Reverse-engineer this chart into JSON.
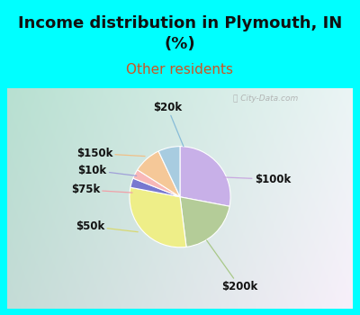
{
  "title": "Income distribution in Plymouth, IN\n(%)",
  "subtitle": "Other residents",
  "title_color": "#111111",
  "subtitle_color": "#cc5522",
  "bg_cyan": "#00ffff",
  "labels": [
    "$100k",
    "$200k",
    "$50k",
    "$75k",
    "$10k",
    "$150k",
    "$20k"
  ],
  "values": [
    28,
    20,
    30,
    3,
    3,
    9,
    7
  ],
  "colors": [
    "#c8b0e8",
    "#b4cc98",
    "#eeee88",
    "#7878d0",
    "#f8b8b8",
    "#f5c898",
    "#a8cce0"
  ],
  "startangle": 90,
  "label_fontsize": 8.5,
  "title_fontsize": 13,
  "subtitle_fontsize": 11
}
